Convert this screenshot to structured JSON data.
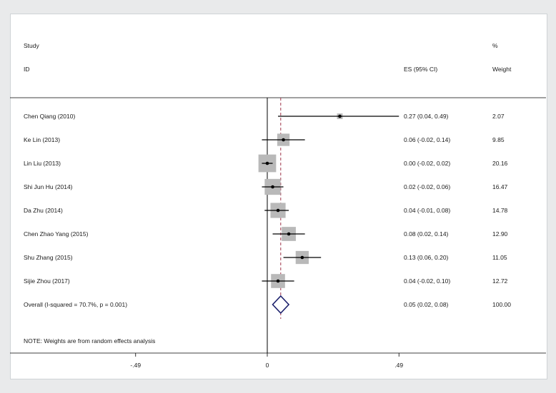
{
  "header": {
    "study_label": "Study",
    "id_label": "ID",
    "es_label": "ES (95% CI)",
    "pct_label": "%",
    "weight_label": "Weight"
  },
  "footnote": "NOTE: Weights are from random effects analysis",
  "chart_data": {
    "type": "forest",
    "title": "",
    "xlabel": "",
    "ylabel": "",
    "x_ticks": [
      {
        "value": -0.49,
        "label": "-.49"
      },
      {
        "value": 0,
        "label": "0"
      },
      {
        "value": 0.49,
        "label": ".49"
      }
    ],
    "xlim": [
      -0.49,
      0.49
    ],
    "null_line": 0,
    "overall_line": 0.05,
    "studies": [
      {
        "label": "Chen Qiang (2010)",
        "es": 0.27,
        "lo": 0.04,
        "hi": 0.49,
        "es_text": "0.27 (0.04, 0.49)",
        "weight": 2.07,
        "weight_text": "2.07"
      },
      {
        "label": "Ke Lin (2013)",
        "es": 0.06,
        "lo": -0.02,
        "hi": 0.14,
        "es_text": "0.06 (-0.02, 0.14)",
        "weight": 9.85,
        "weight_text": "9.85"
      },
      {
        "label": "Lin Liu (2013)",
        "es": 0.0,
        "lo": -0.02,
        "hi": 0.02,
        "es_text": "0.00 (-0.02, 0.02)",
        "weight": 20.16,
        "weight_text": "20.16"
      },
      {
        "label": "Shi Jun Hu (2014)",
        "es": 0.02,
        "lo": -0.02,
        "hi": 0.06,
        "es_text": "0.02 (-0.02, 0.06)",
        "weight": 16.47,
        "weight_text": "16.47"
      },
      {
        "label": "Da Zhu  (2014)",
        "es": 0.04,
        "lo": -0.01,
        "hi": 0.08,
        "es_text": "0.04 (-0.01, 0.08)",
        "weight": 14.78,
        "weight_text": "14.78"
      },
      {
        "label": "Chen Zhao Yang (2015)",
        "es": 0.08,
        "lo": 0.02,
        "hi": 0.14,
        "es_text": "0.08 (0.02, 0.14)",
        "weight": 12.9,
        "weight_text": "12.90"
      },
      {
        "label": "Shu Zhang (2015)",
        "es": 0.13,
        "lo": 0.06,
        "hi": 0.2,
        "es_text": "0.13 (0.06, 0.20)",
        "weight": 11.05,
        "weight_text": "11.05"
      },
      {
        "label": "Sijie Zhou (2017)",
        "es": 0.04,
        "lo": -0.02,
        "hi": 0.1,
        "es_text": "0.04 (-0.02, 0.10)",
        "weight": 12.72,
        "weight_text": "12.72"
      }
    ],
    "overall": {
      "label": "Overall  (I-squared = 70.7%, p = 0.001)",
      "es": 0.05,
      "lo": 0.02,
      "hi": 0.08,
      "es_text": "0.05 (0.02, 0.08)",
      "weight_text": "100.00"
    },
    "colors": {
      "weight_box": "#b9b9b9",
      "diamond": "#1b1f6b",
      "overall_line": "#a0344a",
      "line": "#000000"
    }
  }
}
